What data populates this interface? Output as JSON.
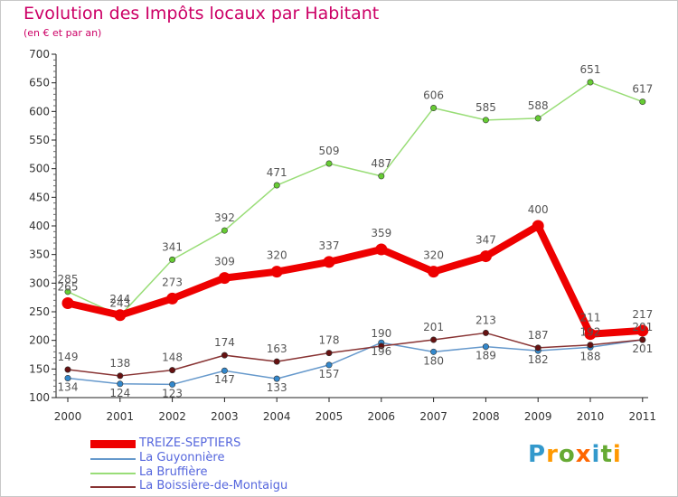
{
  "page": {
    "title": "Evolution des Impôts locaux par Habitant",
    "subtitle": "(en € et par an)",
    "brand": {
      "letters": [
        "P",
        "r",
        "o",
        "x",
        "i",
        "t",
        "i"
      ],
      "colors": [
        "#3399cc",
        "#ff9900",
        "#66aa33",
        "#ff6600",
        "#3399cc",
        "#66aa33",
        "#ff9900"
      ]
    }
  },
  "chart_data": {
    "type": "line",
    "title": "Evolution des Impôts locaux par Habitant",
    "subtitle": "(en € et par an)",
    "x": [
      "2000",
      "2001",
      "2002",
      "2003",
      "2004",
      "2005",
      "2006",
      "2007",
      "2008",
      "2009",
      "2010",
      "2011"
    ],
    "ylim": [
      100,
      700
    ],
    "yticks": [
      100,
      150,
      200,
      250,
      300,
      350,
      400,
      450,
      500,
      550,
      600,
      650,
      700
    ],
    "grid": false,
    "legend_position": "bottom-left",
    "series": [
      {
        "name": "TREIZE-SEPTIERS",
        "color": "#ee0000",
        "marker": "#ee0000",
        "label_color": "#555555",
        "bold": true,
        "values": [
          265,
          244,
          273,
          309,
          320,
          337,
          359,
          320,
          347,
          400,
          211,
          217
        ]
      },
      {
        "name": "La Guyonnière",
        "color": "#6699cc",
        "marker": "#3388cc",
        "label_color": "#555555",
        "bold": false,
        "values": [
          134,
          124,
          123,
          147,
          133,
          157,
          196,
          180,
          189,
          182,
          188,
          201
        ]
      },
      {
        "name": "La Bruffière",
        "color": "#99dd77",
        "marker": "#66cc33",
        "label_color": "#555555",
        "bold": false,
        "values": [
          285,
          243,
          341,
          392,
          471,
          509,
          487,
          606,
          585,
          588,
          651,
          617
        ]
      },
      {
        "name": "La Boissière-de-Montaigu",
        "color": "#883333",
        "marker": "#661111",
        "label_color": "#555555",
        "bold": false,
        "values": [
          149,
          138,
          148,
          174,
          163,
          178,
          190,
          201,
          213,
          187,
          192,
          201
        ]
      }
    ]
  }
}
